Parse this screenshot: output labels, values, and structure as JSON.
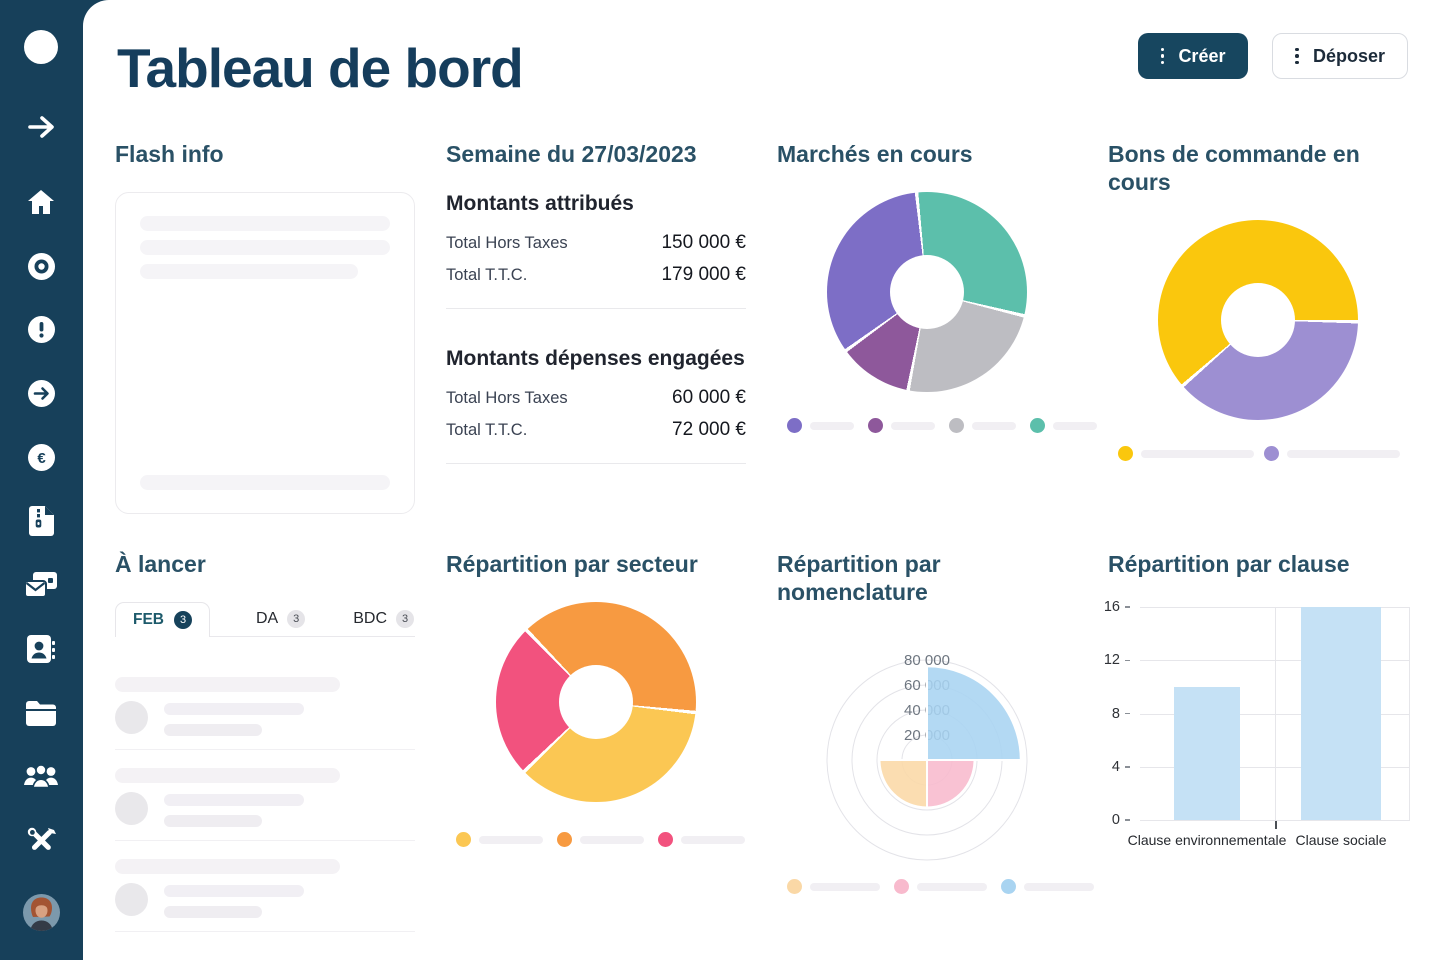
{
  "header": {
    "title": "Tableau de bord",
    "create_label": "Créer",
    "deposit_label": "Déposer"
  },
  "sidebar": {
    "items": [
      "logo",
      "collapse-arrow",
      "home",
      "record",
      "alerts",
      "go-forward",
      "finance",
      "zip-documents",
      "mailings",
      "contacts",
      "folders",
      "team",
      "tools",
      "profile-avatar"
    ]
  },
  "flash_info": {
    "title": "Flash info",
    "skeleton_line_widths": [
      "100%",
      "100%",
      "87%",
      "100%"
    ]
  },
  "week": {
    "title": "Semaine du 27/03/2023",
    "sections": [
      {
        "title": "Montants attribués",
        "rows": [
          {
            "label": "Total Hors Taxes",
            "value": "150 000 €"
          },
          {
            "label": "Total T.T.C.",
            "value": "179 000 €"
          }
        ]
      },
      {
        "title": "Montants  dépenses engagées",
        "rows": [
          {
            "label": "Total Hors Taxes",
            "value": "60 000 €"
          },
          {
            "label": "Total T.T.C.",
            "value": "72 000 €"
          }
        ]
      }
    ]
  },
  "a_lancer": {
    "title": "À lancer",
    "tabs": [
      {
        "label": "FEB",
        "count": "3",
        "active": true
      },
      {
        "label": "DA",
        "count": "3",
        "active": false
      },
      {
        "label": "BDC",
        "count": "3",
        "active": false
      }
    ],
    "skeleton_items": 3
  },
  "chart_data": [
    {
      "id": "marches",
      "type": "donut",
      "title": "Marchés en cours",
      "start_angle": -7,
      "segments": [
        {
          "color": "#5CBFAB",
          "percent": 30.5
        },
        {
          "color": "#BDBDC2",
          "percent": 24.2
        },
        {
          "color": "#8E589B",
          "percent": 12.0
        },
        {
          "color": "#7D6EC6",
          "percent": 33.3
        }
      ],
      "legend_colors": [
        "#7D6EC6",
        "#8E589B",
        "#BDBDC2",
        "#5CBFAB"
      ],
      "legend_pill_width": 44
    },
    {
      "id": "bons",
      "type": "donut",
      "title": "Bons de commande en cours",
      "start_angle": 90,
      "segments": [
        {
          "color": "#9D8FD2",
          "percent": 38.3
        },
        {
          "color": "#FAC70D",
          "percent": 61.7
        }
      ],
      "legend_colors": [
        "#FAC70D",
        "#9D8FD2"
      ],
      "legend_pill_width": 113
    },
    {
      "id": "secteur",
      "type": "donut",
      "title": "Répartition par secteur",
      "start_angle": -45,
      "segments": [
        {
          "color": "#F79A41",
          "percent": 38.9
        },
        {
          "color": "#FBC753",
          "percent": 36.1
        },
        {
          "color": "#F2527E",
          "percent": 25.0
        }
      ],
      "legend_colors": [
        "#FBC753",
        "#F79A41",
        "#F2527E"
      ],
      "legend_pill_width": 64
    },
    {
      "id": "nomenclature",
      "type": "polar_area",
      "title": "Répartition par nomenclature",
      "max": 80000,
      "rings": [
        {
          "value": 20000,
          "label": "20 000"
        },
        {
          "value": 40000,
          "label": "40 000"
        },
        {
          "value": 60000,
          "label": "60 000"
        },
        {
          "value": 80000,
          "label": "80 000"
        }
      ],
      "sectors": [
        {
          "color": "#A9D4F1",
          "start": 0,
          "end": 90,
          "value": 75000
        },
        {
          "color": "#F8BACD",
          "start": 90,
          "end": 180,
          "value": 38000
        },
        {
          "color": "#FAD8A6",
          "start": 180,
          "end": 270,
          "value": 38000
        }
      ],
      "legend_colors": [
        "#FAD8A6",
        "#F8BACD",
        "#A9D4F1"
      ],
      "legend_pill_width": 70
    },
    {
      "id": "clause",
      "type": "bar",
      "title": "Répartition par clause",
      "categories": [
        "Clause environnementale",
        "Clause sociale"
      ],
      "values": [
        10,
        16
      ],
      "yticks": [
        0,
        4,
        8,
        12,
        16
      ],
      "ylim": [
        0,
        16
      ],
      "bar_color": "#C5E1F5",
      "grid": true
    }
  ]
}
